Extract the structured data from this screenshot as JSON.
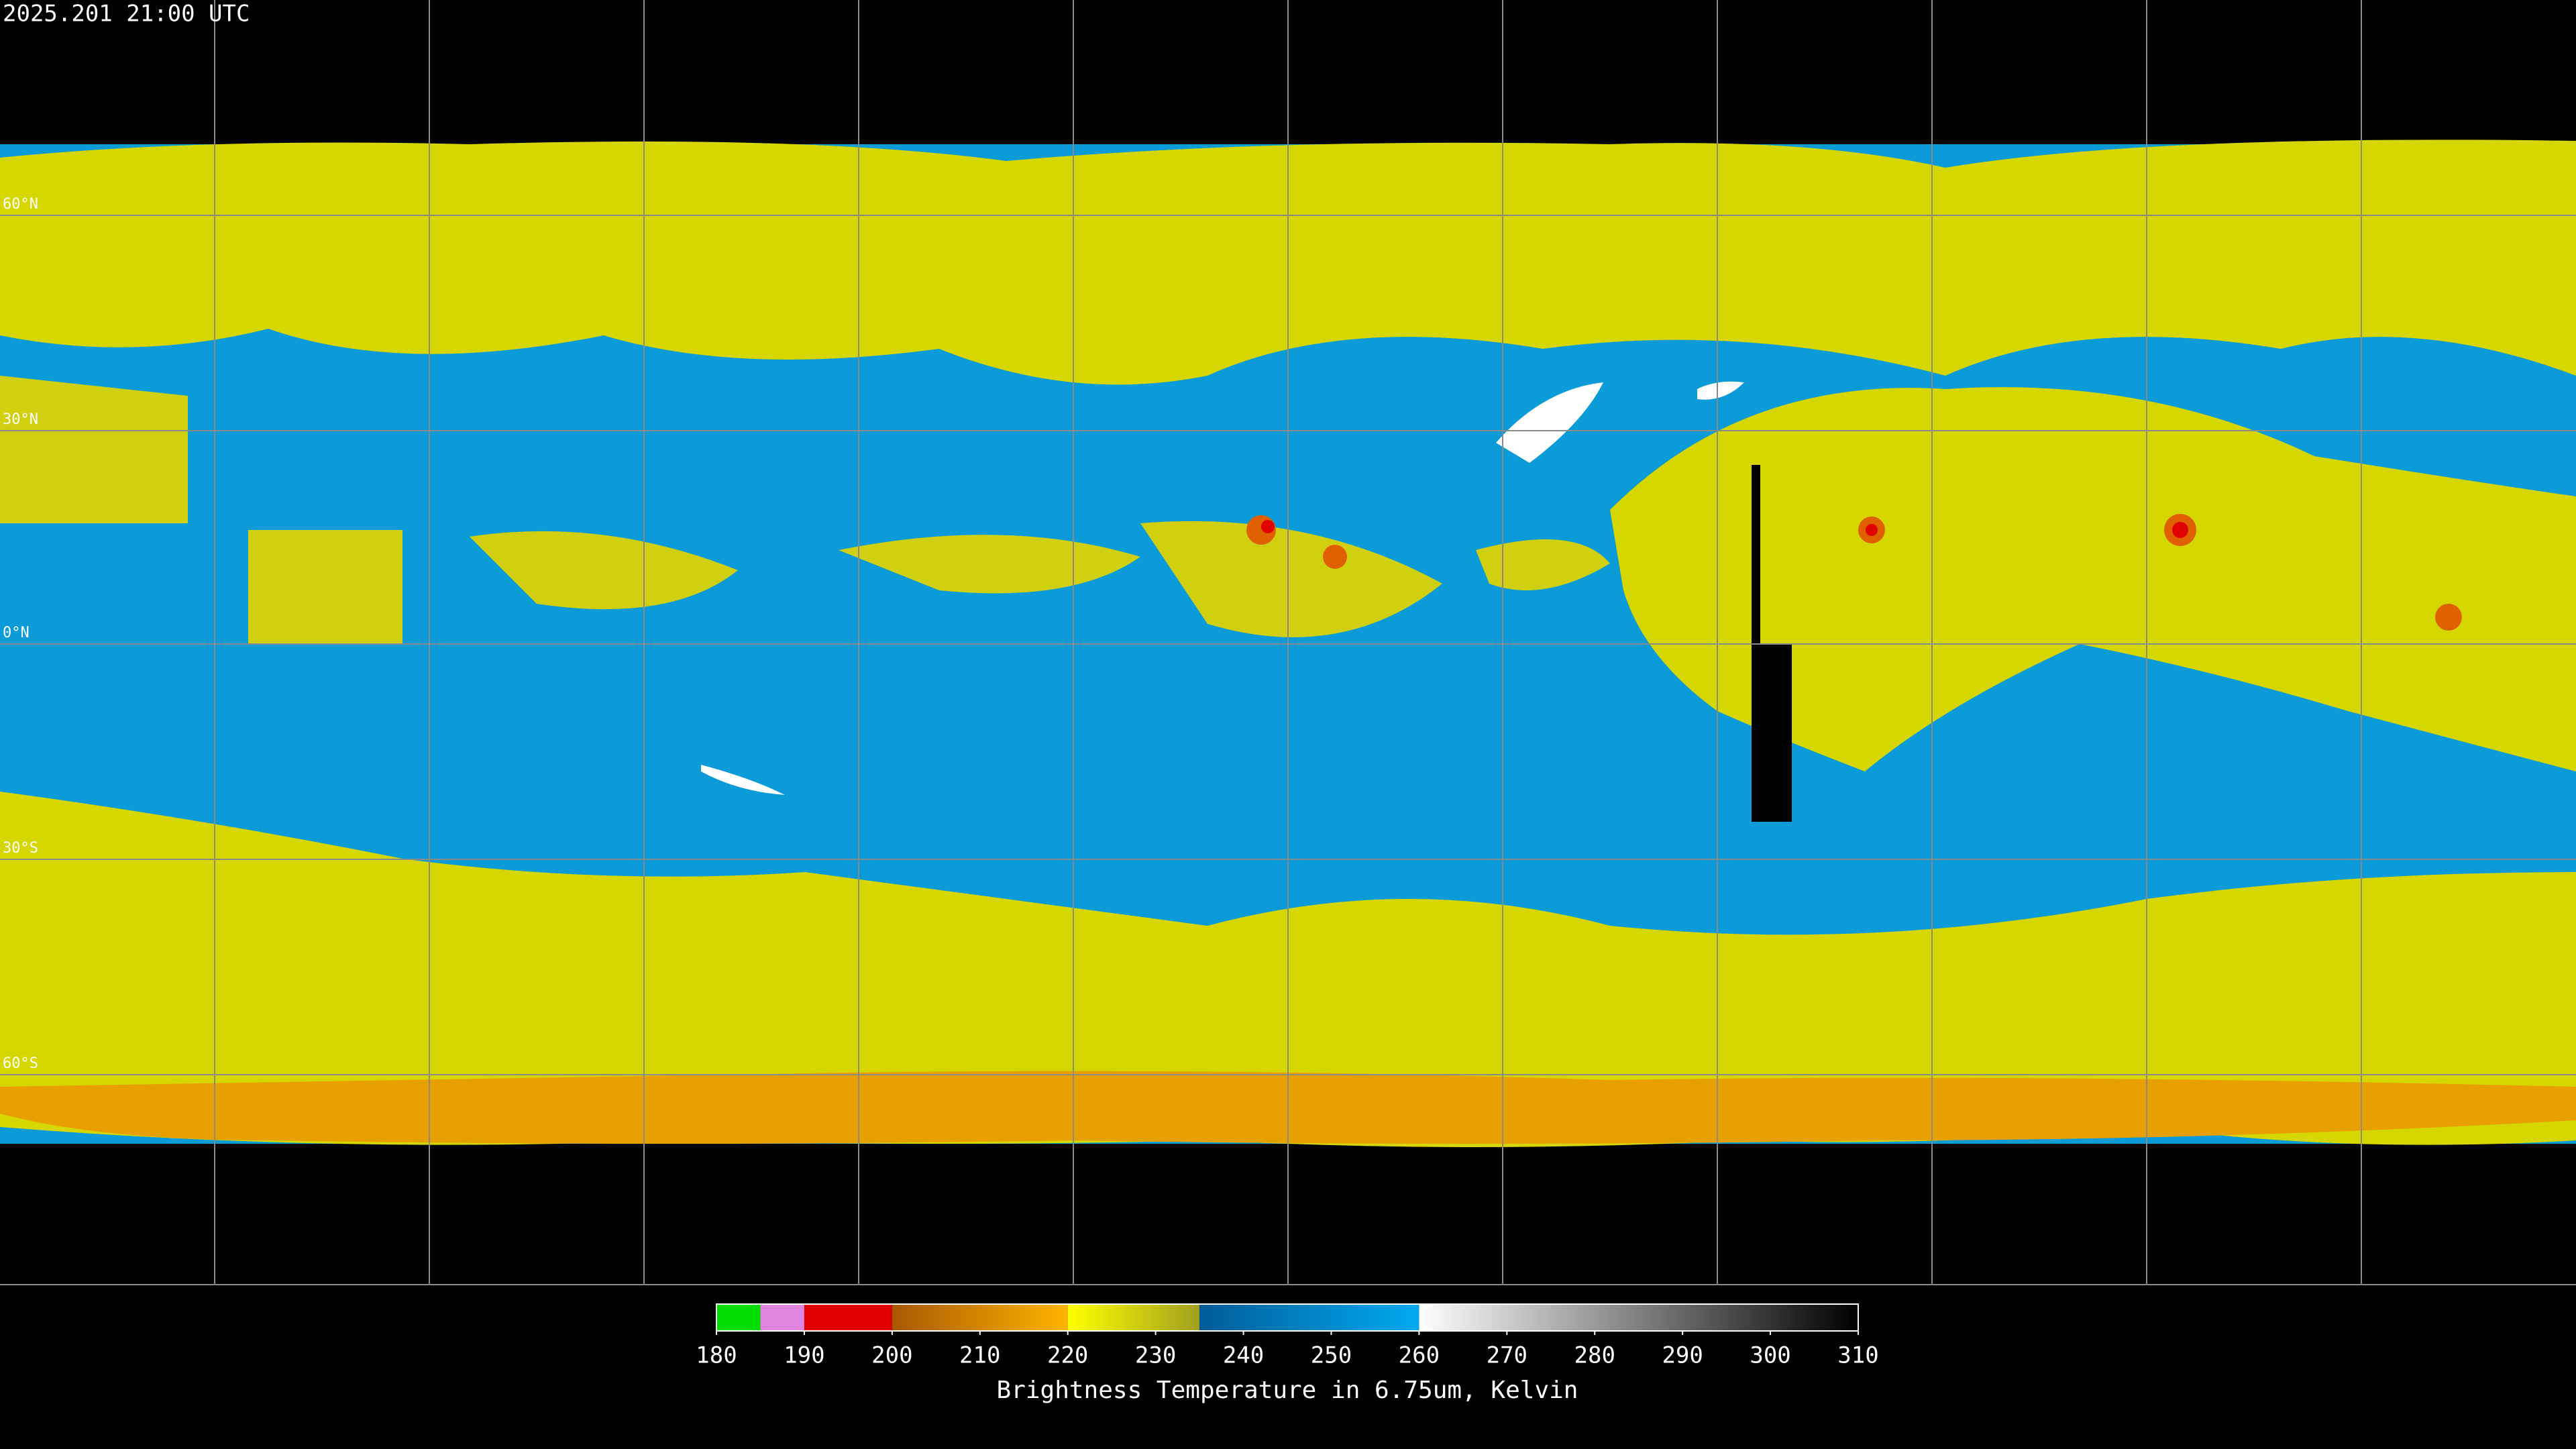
{
  "header": {
    "timestamp": "2025.201 21:00 UTC"
  },
  "map": {
    "lat_labels": [
      "60°N",
      "30°N",
      "0°N",
      "30°S",
      "60°S"
    ]
  },
  "colorbar": {
    "title": "Brightness Temperature in 6.75um, Kelvin",
    "lim": [
      180,
      310
    ],
    "ticks": [
      180,
      190,
      200,
      210,
      220,
      230,
      240,
      250,
      260,
      270,
      280,
      290,
      300,
      310
    ],
    "segments": [
      {
        "from": 180,
        "to": 185,
        "colors": [
          "#00dd00",
          "#00dd00"
        ]
      },
      {
        "from": 185,
        "to": 190,
        "colors": [
          "#e086e0",
          "#e086e0"
        ]
      },
      {
        "from": 190,
        "to": 200,
        "colors": [
          "#e00000",
          "#e00000"
        ]
      },
      {
        "from": 200,
        "to": 220,
        "colors": [
          "#a85800",
          "#ffb400"
        ]
      },
      {
        "from": 220,
        "to": 235,
        "colors": [
          "#ffff00",
          "#a0a020"
        ]
      },
      {
        "from": 235,
        "to": 260,
        "colors": [
          "#005c98",
          "#00aaf0"
        ]
      },
      {
        "from": 260,
        "to": 310,
        "colors": [
          "#ffffff",
          "#000000"
        ]
      }
    ]
  }
}
